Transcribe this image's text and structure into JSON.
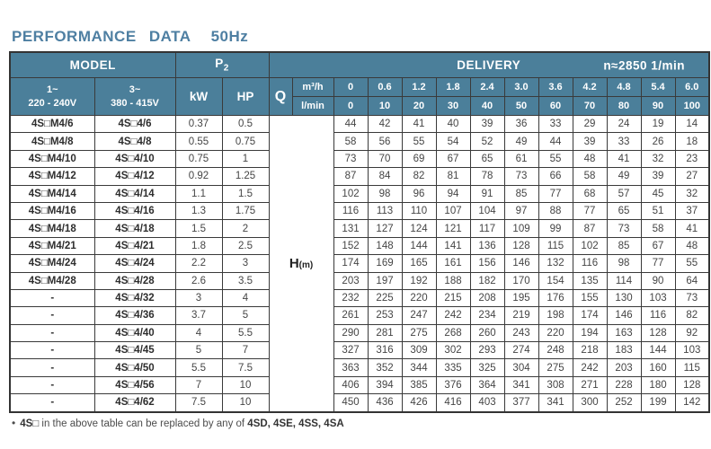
{
  "title": {
    "main": "PERFORMANCE DATA",
    "freq": "50Hz"
  },
  "table": {
    "header": {
      "model": "MODEL",
      "p2_main": "P",
      "p2_sub": "2",
      "delivery": "DELIVERY",
      "speed": "n≈2850 1/min",
      "model_1ph_line1": "1~",
      "model_1ph_line2": "220 - 240V",
      "model_3ph_line1": "3~",
      "model_3ph_line2": "380 - 415V",
      "kw": "kW",
      "hp": "HP",
      "q": "Q",
      "q_unit_top": "m³/h",
      "q_unit_bottom": "l/min",
      "flow_m3h": [
        "0",
        "0.6",
        "1.2",
        "1.8",
        "2.4",
        "3.0",
        "3.6",
        "4.2",
        "4.8",
        "5.4",
        "6.0"
      ],
      "flow_lmin": [
        "0",
        "10",
        "20",
        "30",
        "40",
        "50",
        "60",
        "70",
        "80",
        "90",
        "100"
      ]
    },
    "h_label_main": "H",
    "h_label_sub": "(m)",
    "rows": [
      {
        "model_1ph": "4S□M4/6",
        "model_3ph": "4S□4/6",
        "kw": "0.37",
        "hp": "0.5",
        "head": [
          44,
          42,
          41,
          40,
          39,
          36,
          33,
          29,
          24,
          19,
          14
        ]
      },
      {
        "model_1ph": "4S□M4/8",
        "model_3ph": "4S□4/8",
        "kw": "0.55",
        "hp": "0.75",
        "head": [
          58,
          56,
          55,
          54,
          52,
          49,
          44,
          39,
          33,
          26,
          18
        ]
      },
      {
        "model_1ph": "4S□M4/10",
        "model_3ph": "4S□4/10",
        "kw": "0.75",
        "hp": "1",
        "head": [
          73,
          70,
          69,
          67,
          65,
          61,
          55,
          48,
          41,
          32,
          23
        ]
      },
      {
        "model_1ph": "4S□M4/12",
        "model_3ph": "4S□4/12",
        "kw": "0.92",
        "hp": "1.25",
        "head": [
          87,
          84,
          82,
          81,
          78,
          73,
          66,
          58,
          49,
          39,
          27
        ]
      },
      {
        "model_1ph": "4S□M4/14",
        "model_3ph": "4S□4/14",
        "kw": "1.1",
        "hp": "1.5",
        "head": [
          102,
          98,
          96,
          94,
          91,
          85,
          77,
          68,
          57,
          45,
          32
        ]
      },
      {
        "model_1ph": "4S□M4/16",
        "model_3ph": "4S□4/16",
        "kw": "1.3",
        "hp": "1.75",
        "head": [
          116,
          113,
          110,
          107,
          104,
          97,
          88,
          77,
          65,
          51,
          37
        ]
      },
      {
        "model_1ph": "4S□M4/18",
        "model_3ph": "4S□4/18",
        "kw": "1.5",
        "hp": "2",
        "head": [
          131,
          127,
          124,
          121,
          117,
          109,
          99,
          87,
          73,
          58,
          41
        ]
      },
      {
        "model_1ph": "4S□M4/21",
        "model_3ph": "4S□4/21",
        "kw": "1.8",
        "hp": "2.5",
        "head": [
          152,
          148,
          144,
          141,
          136,
          128,
          115,
          102,
          85,
          67,
          48
        ]
      },
      {
        "model_1ph": "4S□M4/24",
        "model_3ph": "4S□4/24",
        "kw": "2.2",
        "hp": "3",
        "head": [
          174,
          169,
          165,
          161,
          156,
          146,
          132,
          116,
          98,
          77,
          55
        ]
      },
      {
        "model_1ph": "4S□M4/28",
        "model_3ph": "4S□4/28",
        "kw": "2.6",
        "hp": "3.5",
        "head": [
          203,
          197,
          192,
          188,
          182,
          170,
          154,
          135,
          114,
          90,
          64
        ]
      },
      {
        "model_1ph": "-",
        "model_3ph": "4S□4/32",
        "kw": "3",
        "hp": "4",
        "head": [
          232,
          225,
          220,
          215,
          208,
          195,
          176,
          155,
          130,
          103,
          73
        ]
      },
      {
        "model_1ph": "-",
        "model_3ph": "4S□4/36",
        "kw": "3.7",
        "hp": "5",
        "head": [
          261,
          253,
          247,
          242,
          234,
          219,
          198,
          174,
          146,
          116,
          82
        ]
      },
      {
        "model_1ph": "-",
        "model_3ph": "4S□4/40",
        "kw": "4",
        "hp": "5.5",
        "head": [
          290,
          281,
          275,
          268,
          260,
          243,
          220,
          194,
          163,
          128,
          92
        ]
      },
      {
        "model_1ph": "-",
        "model_3ph": "4S□4/45",
        "kw": "5",
        "hp": "7",
        "head": [
          327,
          316,
          309,
          302,
          293,
          274,
          248,
          218,
          183,
          144,
          103
        ]
      },
      {
        "model_1ph": "-",
        "model_3ph": "4S□4/50",
        "kw": "5.5",
        "hp": "7.5",
        "head": [
          363,
          352,
          344,
          335,
          325,
          304,
          275,
          242,
          203,
          160,
          115
        ]
      },
      {
        "model_1ph": "-",
        "model_3ph": "4S□4/56",
        "kw": "7",
        "hp": "10",
        "head": [
          406,
          394,
          385,
          376,
          364,
          341,
          308,
          271,
          228,
          180,
          128
        ]
      },
      {
        "model_1ph": "-",
        "model_3ph": "4S□4/62",
        "kw": "7.5",
        "hp": "10",
        "head": [
          450,
          436,
          426,
          416,
          403,
          377,
          341,
          300,
          252,
          199,
          142
        ]
      }
    ]
  },
  "footnote": {
    "bullet": "•",
    "bold1": "4S□",
    "text": " in the above table can be replaced by any of ",
    "bold2": "4SD, 4SE, 4SS, 4SA"
  },
  "colors": {
    "header_bg": "#4b7f9a",
    "title_text": "#4e7fa2",
    "border": "#3a3a3a",
    "body_text": "#454545"
  }
}
